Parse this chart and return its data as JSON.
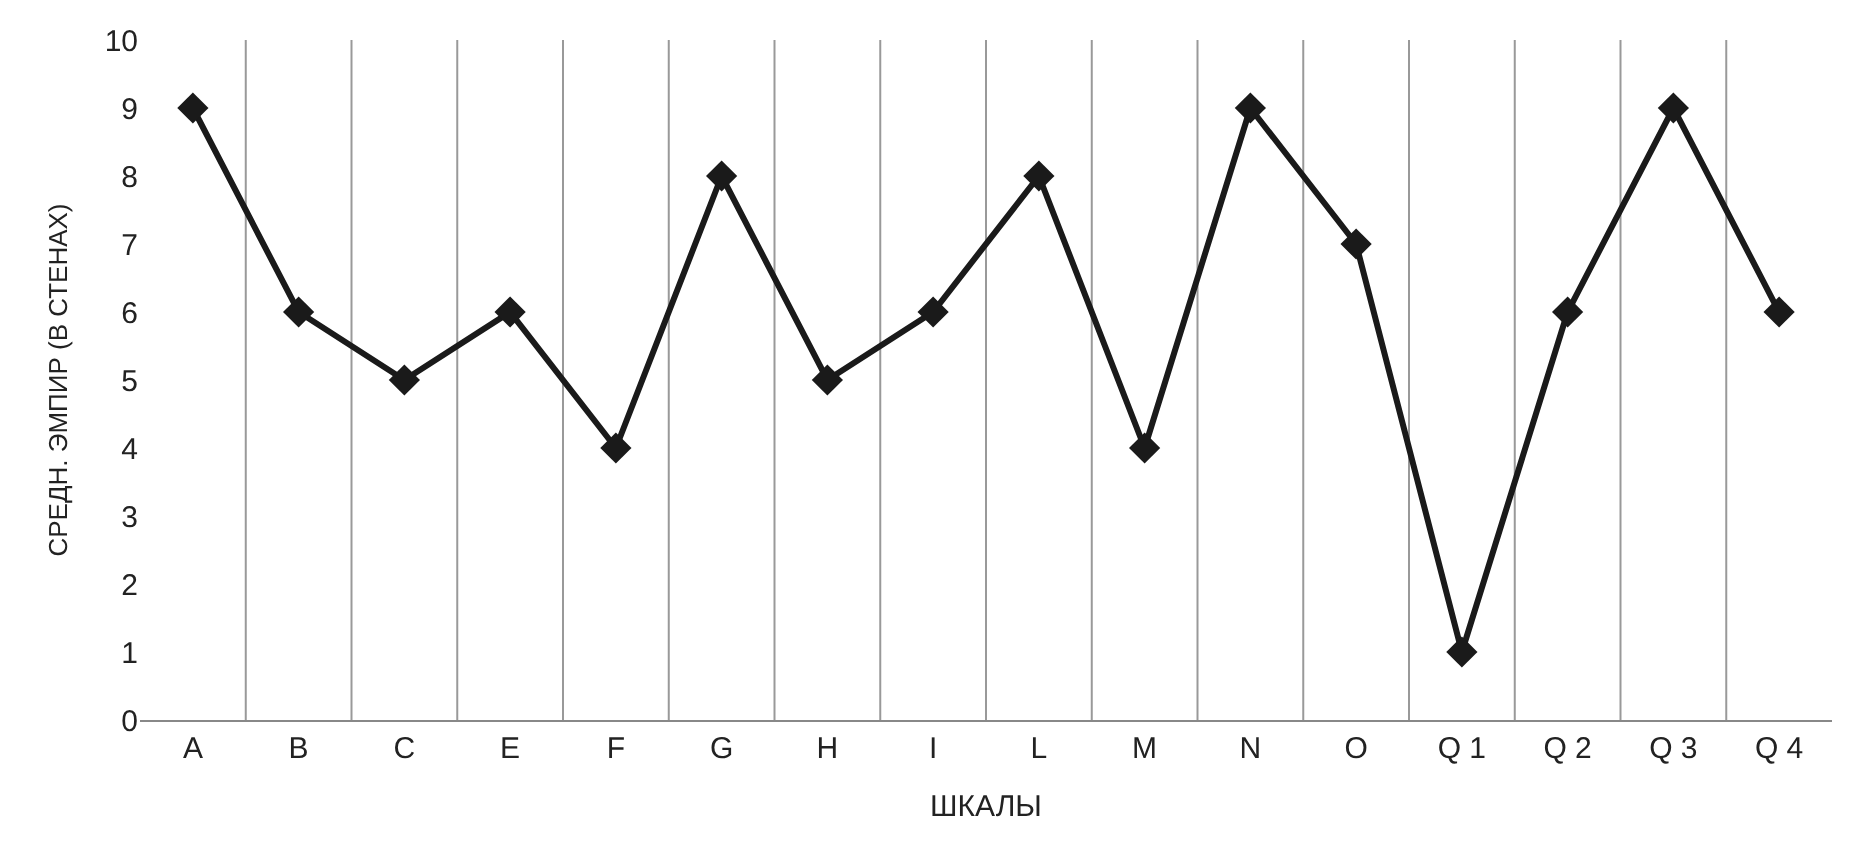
{
  "chart_data": {
    "type": "line",
    "xlabel": "ШКАЛЫ",
    "ylabel": "СРЕДН. ЭМПИР (В СТЕНАХ)",
    "categories": [
      "A",
      "B",
      "C",
      "E",
      "F",
      "G",
      "H",
      "I",
      "L",
      "M",
      "N",
      "O",
      "Q 1",
      "Q 2",
      "Q 3",
      "Q 4"
    ],
    "series": [
      {
        "color": "#1a1a1a",
        "values": [
          9,
          6,
          5,
          6,
          4,
          8,
          5,
          6,
          8,
          4,
          9,
          7,
          1,
          6,
          9,
          6
        ]
      }
    ],
    "ylim": [
      0,
      10
    ],
    "yticks": [
      0,
      1,
      2,
      3,
      4,
      5,
      6,
      7,
      8,
      9,
      10
    ],
    "grid": "x",
    "marker": "diamond",
    "line_style": "solid"
  }
}
